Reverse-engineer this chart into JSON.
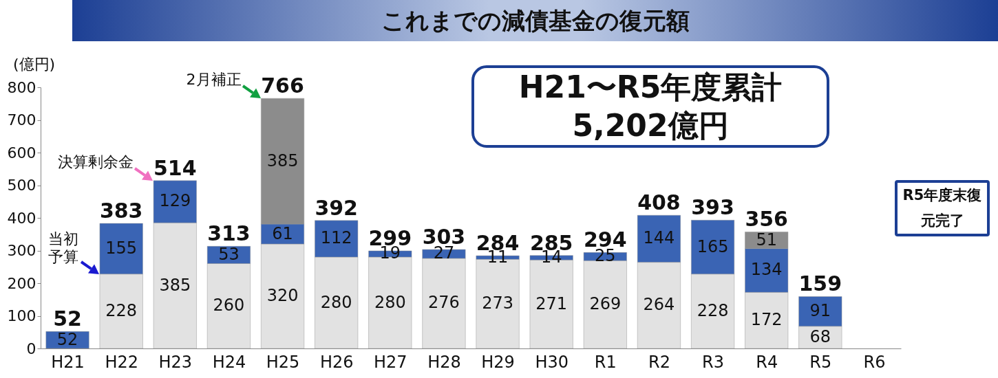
{
  "chart_data": {
    "type": "bar",
    "title": "これまでの減債基金の復元額",
    "ylabel": "(億円)",
    "stacked": true,
    "data_labels": true,
    "categories": [
      "H21",
      "H22",
      "H23",
      "H24",
      "H25",
      "H26",
      "H27",
      "H28",
      "H29",
      "H30",
      "R1",
      "R2",
      "R3",
      "R4",
      "R5",
      "R6"
    ],
    "series": [
      {
        "color": "#e2e2e2",
        "values": [
          null,
          228,
          385,
          260,
          320,
          280,
          280,
          276,
          273,
          271,
          269,
          264,
          228,
          172,
          68,
          null
        ]
      },
      {
        "color": "#3a64b4",
        "values": [
          52,
          155,
          129,
          53,
          61,
          112,
          19,
          27,
          11,
          14,
          25,
          144,
          165,
          134,
          91,
          null
        ]
      },
      {
        "color": "#8c8c8c",
        "values": [
          null,
          null,
          null,
          null,
          385,
          null,
          null,
          null,
          null,
          null,
          null,
          null,
          null,
          51,
          null,
          null
        ]
      }
    ],
    "totals": [
      "52",
      "383",
      "514",
      "313",
      "766",
      "392",
      "299",
      "303",
      "284",
      "285",
      "294",
      "408",
      "393",
      "356",
      "159",
      null
    ],
    "ylim": [
      0,
      800
    ],
    "yticks": [
      0,
      100,
      200,
      300,
      400,
      500,
      600,
      700,
      800
    ],
    "annotations": [
      {
        "text": "当初予算",
        "x": "H22",
        "y": 228
      },
      {
        "text": "決算剰余金",
        "x": "H23",
        "y": 514
      },
      {
        "text": "2月補正",
        "x": "H25",
        "y": 766
      },
      "H21〜R5年度累計\n5,202億円",
      "R5年度末復元完了"
    ]
  }
}
